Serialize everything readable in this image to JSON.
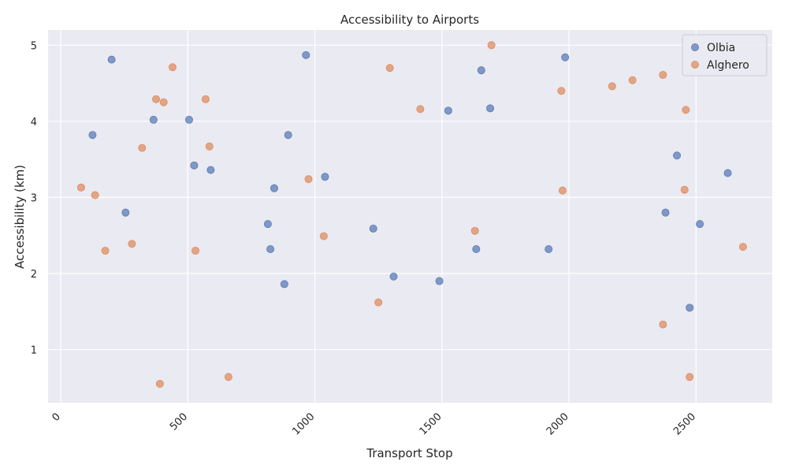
{
  "chart_data": {
    "type": "scatter",
    "title": "Accessibility to Airports",
    "xlabel": "Transport Stop",
    "ylabel": "Accessibility (km)",
    "xlim": [
      -50,
      2800
    ],
    "ylim": [
      0.3,
      5.2
    ],
    "x_ticks": [
      0,
      500,
      1000,
      1500,
      2000,
      2500
    ],
    "y_ticks": [
      1,
      2,
      3,
      4,
      5
    ],
    "grid": true,
    "legend_position": "top-right",
    "background_color": "#eaeaf2",
    "series": [
      {
        "name": "Olbia",
        "color": "#4c72b0",
        "points": [
          [
            125,
            3.82
          ],
          [
            200,
            4.81
          ],
          [
            255,
            2.8
          ],
          [
            365,
            4.02
          ],
          [
            505,
            4.02
          ],
          [
            525,
            3.42
          ],
          [
            590,
            3.36
          ],
          [
            815,
            2.65
          ],
          [
            825,
            2.32
          ],
          [
            840,
            3.12
          ],
          [
            880,
            1.86
          ],
          [
            895,
            3.82
          ],
          [
            965,
            4.87
          ],
          [
            1040,
            3.27
          ],
          [
            1230,
            2.59
          ],
          [
            1310,
            1.96
          ],
          [
            1490,
            1.9
          ],
          [
            1525,
            4.14
          ],
          [
            1635,
            2.32
          ],
          [
            1655,
            4.67
          ],
          [
            1690,
            4.17
          ],
          [
            1920,
            2.32
          ],
          [
            1985,
            4.84
          ],
          [
            2380,
            2.8
          ],
          [
            2425,
            3.55
          ],
          [
            2475,
            1.55
          ],
          [
            2515,
            2.65
          ],
          [
            2625,
            3.32
          ]
        ]
      },
      {
        "name": "Alghero",
        "color": "#dd8452",
        "points": [
          [
            80,
            3.13
          ],
          [
            135,
            3.03
          ],
          [
            175,
            2.3
          ],
          [
            280,
            2.39
          ],
          [
            320,
            3.65
          ],
          [
            375,
            4.29
          ],
          [
            390,
            0.55
          ],
          [
            405,
            4.25
          ],
          [
            440,
            4.71
          ],
          [
            530,
            2.3
          ],
          [
            570,
            4.29
          ],
          [
            585,
            3.67
          ],
          [
            660,
            0.64
          ],
          [
            975,
            3.24
          ],
          [
            1035,
            2.49
          ],
          [
            1250,
            1.62
          ],
          [
            1295,
            4.7
          ],
          [
            1415,
            4.16
          ],
          [
            1630,
            2.56
          ],
          [
            1695,
            5.0
          ],
          [
            1970,
            4.4
          ],
          [
            1975,
            3.09
          ],
          [
            2170,
            4.46
          ],
          [
            2250,
            4.54
          ],
          [
            2370,
            4.61
          ],
          [
            2370,
            1.33
          ],
          [
            2455,
            3.1
          ],
          [
            2460,
            4.15
          ],
          [
            2475,
            0.64
          ],
          [
            2685,
            2.35
          ]
        ]
      }
    ]
  }
}
